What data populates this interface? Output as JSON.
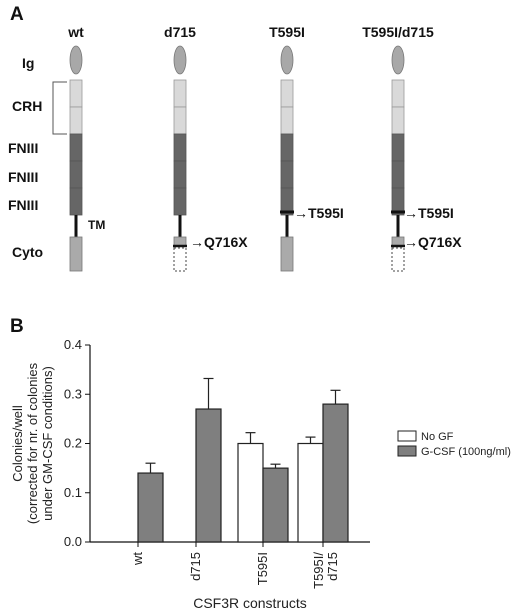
{
  "panel_a": {
    "letter": "A",
    "constructs": [
      "wt",
      "d715",
      "T595I",
      "T595I/d715"
    ],
    "domains": {
      "ig": "Ig",
      "crh": "CRH",
      "fniii": "FNIII",
      "tm": "TM",
      "cyto": "Cyto"
    },
    "annotations": {
      "q716x": "Q716X",
      "t595i": "T595I"
    }
  },
  "panel_b": {
    "letter": "B",
    "legend": [
      "No GF",
      "G-CSF (100ng/ml)"
    ]
  },
  "chart_data": {
    "type": "bar",
    "categories": [
      "wt",
      "d715",
      "T595I",
      "T595I/\nd715"
    ],
    "series": [
      {
        "name": "No GF",
        "values": [
          0,
          0,
          0.2,
          0.2
        ],
        "errors": [
          0,
          0,
          0.022,
          0.013
        ],
        "color": "#ffffff"
      },
      {
        "name": "G-CSF (100ng/ml)",
        "values": [
          0.14,
          0.27,
          0.15,
          0.28
        ],
        "errors": [
          0.02,
          0.062,
          0.008,
          0.028
        ],
        "color": "#7f7f7f"
      }
    ],
    "ylabel_lines": [
      "Colonies/well",
      "(corrected for nr. of colonies",
      "under GM-CSF conditions)"
    ],
    "xlabel": "CSF3R constructs",
    "ylim": [
      0,
      0.4
    ],
    "yticks": [
      "0.0",
      "0.1",
      "0.2",
      "0.3",
      "0.4"
    ],
    "legend_position": "right"
  }
}
